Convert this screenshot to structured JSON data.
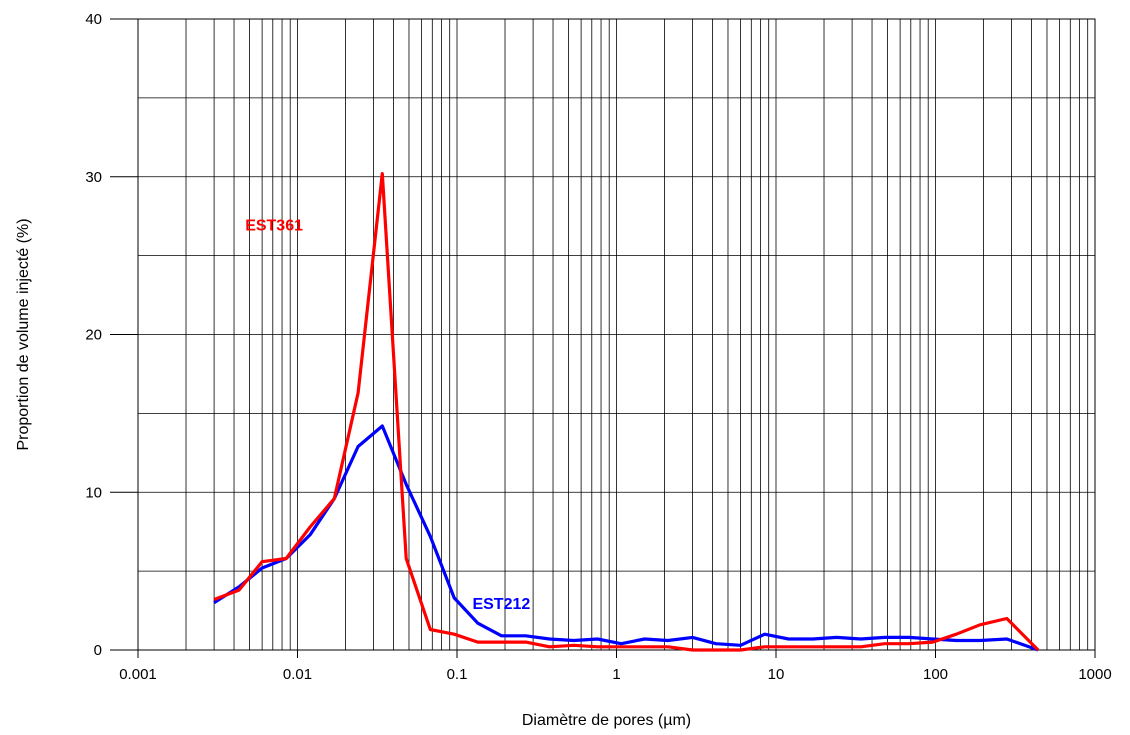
{
  "chart_data": {
    "type": "line",
    "xlabel": "Diamètre de pores (µm)",
    "ylabel": "Proportion de volume injecté (%)",
    "xscale": "log",
    "xlim": [
      0.001,
      1000
    ],
    "ylim": [
      0,
      40
    ],
    "grid": true,
    "x_ticks": [
      "0.001",
      "0.01",
      "0.1",
      "1",
      "10",
      "100",
      "1000"
    ],
    "y_ticks": [
      "0",
      "10",
      "20",
      "30",
      "40"
    ],
    "series": [
      {
        "name": "EST361",
        "color": "#ff0000",
        "x": [
          0.003,
          0.0043,
          0.006,
          0.0085,
          0.012,
          0.017,
          0.024,
          0.034,
          0.048,
          0.068,
          0.096,
          0.135,
          0.19,
          0.27,
          0.38,
          0.54,
          0.76,
          1.07,
          1.5,
          2.1,
          3.0,
          4.2,
          6.0,
          8.5,
          12,
          17,
          24,
          34,
          48,
          68,
          96,
          135,
          190,
          280,
          440
        ],
        "y": [
          3.2,
          3.8,
          5.6,
          5.8,
          7.8,
          9.6,
          16.3,
          30.2,
          5.8,
          1.3,
          1.0,
          0.5,
          0.5,
          0.5,
          0.2,
          0.3,
          0.2,
          0.2,
          0.2,
          0.2,
          0.0,
          0.0,
          0.0,
          0.2,
          0.2,
          0.2,
          0.2,
          0.2,
          0.4,
          0.4,
          0.5,
          1.0,
          1.6,
          2.0,
          0.0
        ]
      },
      {
        "name": "EST212",
        "color": "#0000ff",
        "x": [
          0.003,
          0.0043,
          0.006,
          0.0085,
          0.012,
          0.017,
          0.024,
          0.034,
          0.048,
          0.068,
          0.096,
          0.135,
          0.19,
          0.27,
          0.38,
          0.54,
          0.76,
          1.07,
          1.5,
          2.1,
          3.0,
          4.2,
          6.0,
          8.5,
          12,
          17,
          24,
          34,
          48,
          68,
          96,
          135,
          190,
          280,
          440
        ],
        "y": [
          3.0,
          4.0,
          5.2,
          5.8,
          7.3,
          9.6,
          12.9,
          14.2,
          10.5,
          7.2,
          3.3,
          1.7,
          0.9,
          0.9,
          0.7,
          0.6,
          0.7,
          0.4,
          0.7,
          0.6,
          0.8,
          0.4,
          0.3,
          1.0,
          0.7,
          0.7,
          0.8,
          0.7,
          0.8,
          0.8,
          0.7,
          0.6,
          0.6,
          0.7,
          0.0
        ]
      }
    ]
  }
}
